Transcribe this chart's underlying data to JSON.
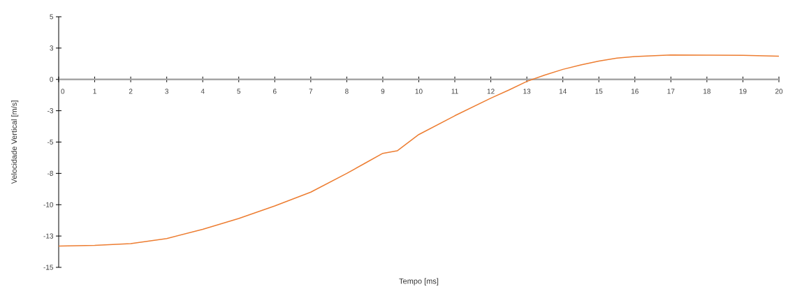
{
  "chart_data": {
    "type": "line",
    "xlabel": "Tempo [ms]",
    "ylabel": "Velocidade Vertical [m/s]",
    "x": [
      0,
      1,
      2,
      3,
      4,
      5,
      6,
      7,
      8,
      8.5,
      9,
      9.4,
      10,
      11,
      12,
      12.5,
      13,
      13.5,
      14,
      14.5,
      15,
      15.5,
      16,
      17,
      18,
      19,
      20
    ],
    "series": [
      {
        "color": "#ed7d31",
        "values": [
          -13.3,
          -13.25,
          -13.1,
          -12.7,
          -11.96,
          -11.1,
          -10.1,
          -9.0,
          -7.5,
          -6.7,
          -5.9,
          -5.7,
          -4.4,
          -2.9,
          -1.5,
          -0.85,
          -0.16,
          0.35,
          0.8,
          1.15,
          1.46,
          1.7,
          1.82,
          1.95,
          1.94,
          1.92,
          1.85
        ]
      }
    ],
    "xlim": [
      0,
      20
    ],
    "ylim": [
      -15,
      5
    ],
    "xticks": [
      0,
      1,
      2,
      3,
      4,
      5,
      6,
      7,
      8,
      9,
      10,
      11,
      12,
      13,
      14,
      15,
      16,
      17,
      18,
      19,
      20
    ],
    "yticks": [
      {
        "value": -15,
        "label": "-15"
      },
      {
        "value": -12.5,
        "label": "-13"
      },
      {
        "value": -10,
        "label": "-10"
      },
      {
        "value": -7.5,
        "label": "-8"
      },
      {
        "value": -5,
        "label": "-5"
      },
      {
        "value": -2.5,
        "label": "-3"
      },
      {
        "value": 0,
        "label": "0"
      },
      {
        "value": 2.5,
        "label": "3"
      },
      {
        "value": 5,
        "label": "5"
      }
    ],
    "grid": false,
    "marker": "none",
    "line_style": "solid"
  }
}
